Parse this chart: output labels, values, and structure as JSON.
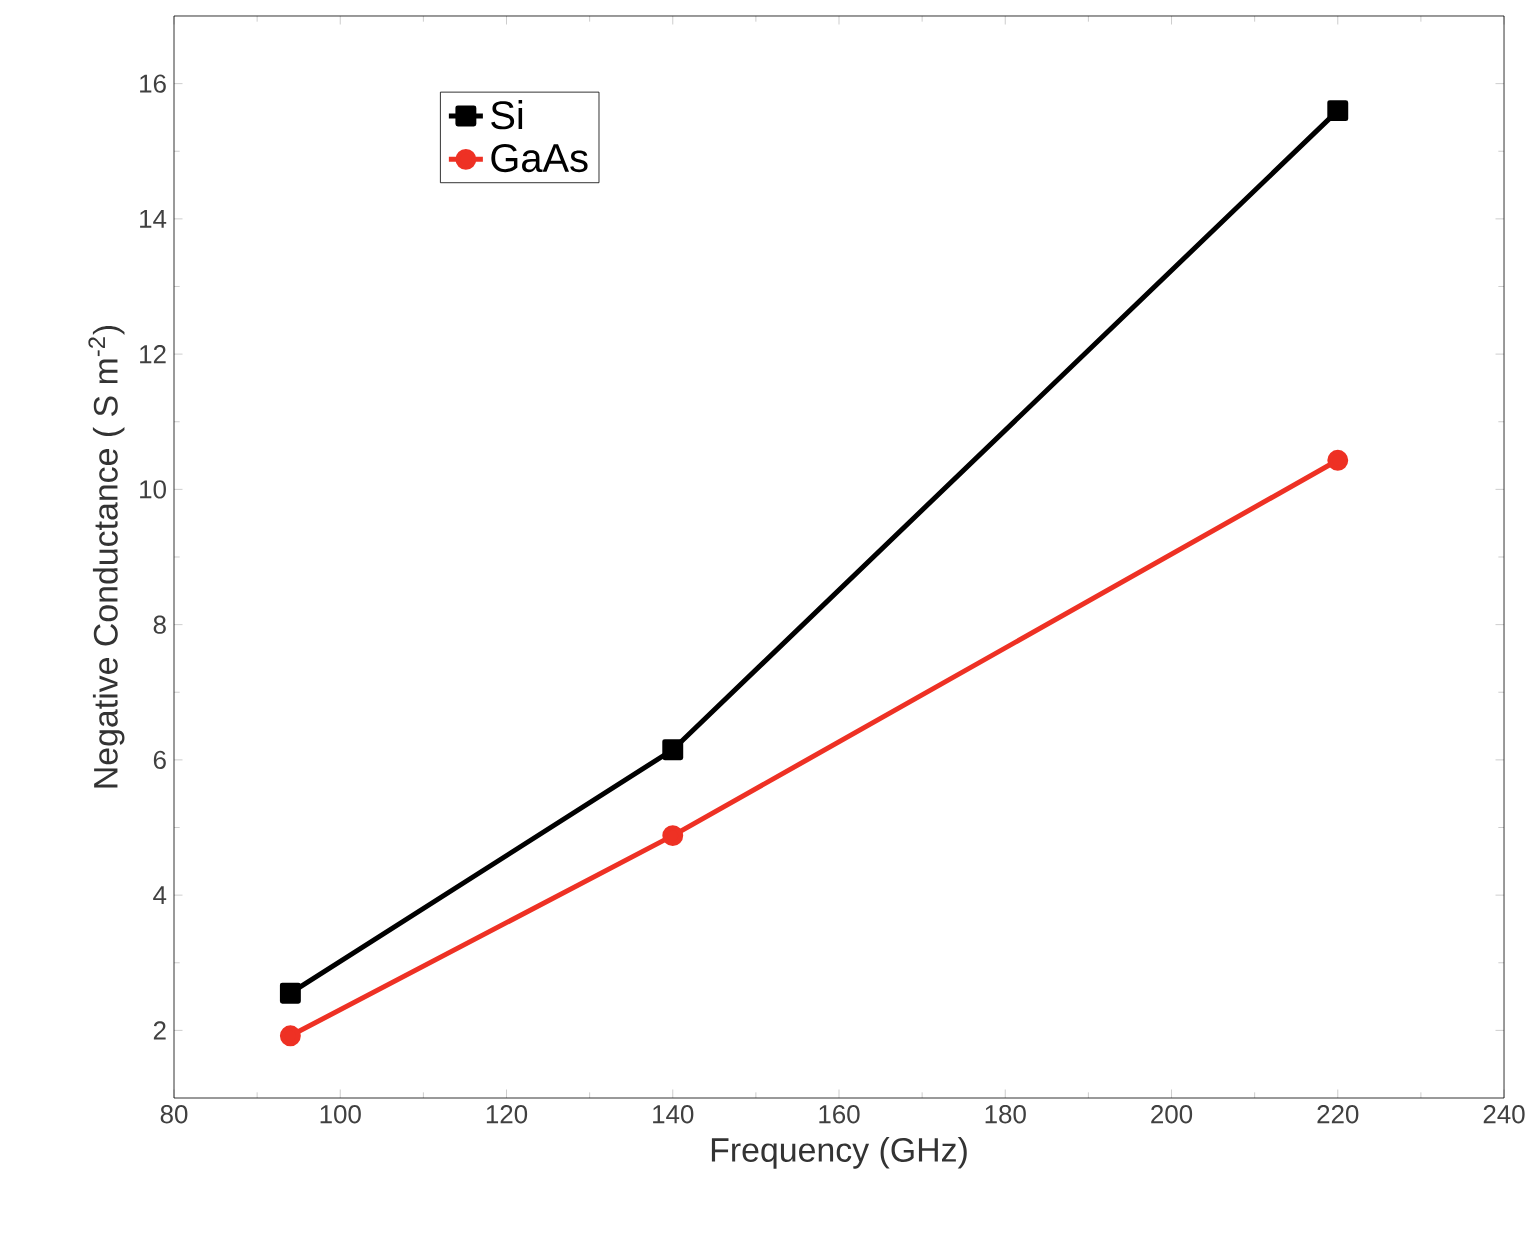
{
  "chart_data": {
    "type": "line",
    "xlabel": "Frequency (GHz)",
    "ylabel": "Negative Conductance ( S m$^{-2}$)",
    "x": [
      94,
      140,
      220
    ],
    "series": [
      {
        "name": "Si",
        "color": "#000000",
        "marker": "square",
        "values": [
          2.55,
          6.15,
          15.6
        ]
      },
      {
        "name": "GaAs",
        "color": "#ee3124",
        "marker": "circle",
        "values": [
          1.92,
          4.88,
          10.43
        ]
      }
    ],
    "xlim": [
      80,
      240
    ],
    "xticks": [
      80,
      100,
      120,
      140,
      160,
      180,
      200,
      220,
      240
    ],
    "ylim": [
      1,
      17
    ],
    "yticks": [
      2,
      4,
      6,
      8,
      10,
      12,
      14,
      16
    ],
    "grid": false,
    "legend": "top left",
    "line_style": "solid"
  }
}
